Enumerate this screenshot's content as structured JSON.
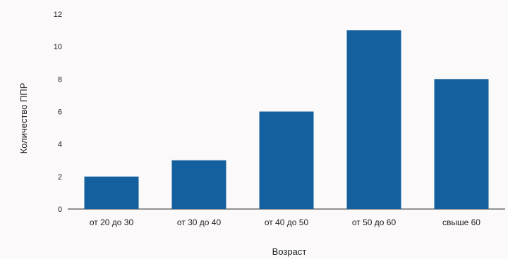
{
  "chart_data": {
    "type": "bar",
    "categories": [
      "от 20 до 30",
      "от 30 до 40",
      "от 40 до 50",
      "от 50 до 60",
      "свыше 60"
    ],
    "values": [
      2,
      3,
      6,
      11,
      8
    ],
    "xlabel": "Возраст",
    "ylabel": "Количество ППР",
    "ylim": [
      0,
      12
    ],
    "yticks": [
      0,
      2,
      4,
      6,
      8,
      10,
      12
    ],
    "grid": false,
    "legend": "none",
    "bar_color": "#14609e",
    "axis_color": "#555555"
  }
}
